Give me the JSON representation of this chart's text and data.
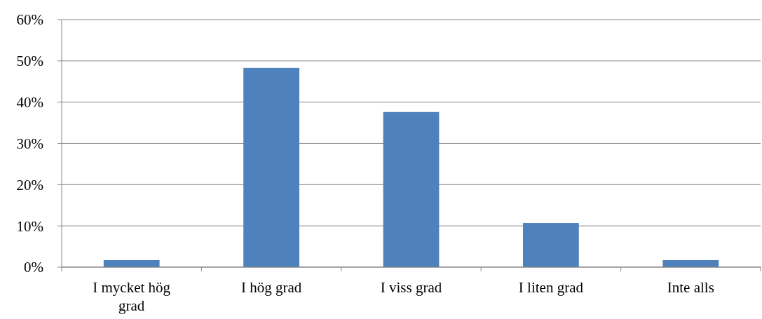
{
  "chart_data": {
    "type": "bar",
    "categories": [
      "I mycket hög grad",
      "I hög grad",
      "I viss grad",
      "I liten grad",
      "Inte alls"
    ],
    "values": [
      1.7,
      48.3,
      37.6,
      10.7,
      1.7
    ],
    "color": "#4f81bd",
    "ylim": [
      0,
      60
    ],
    "yticks": [
      {
        "value": 0,
        "label": "0%"
      },
      {
        "value": 10,
        "label": "10%"
      },
      {
        "value": 20,
        "label": "20%"
      },
      {
        "value": 30,
        "label": "30%"
      },
      {
        "value": 40,
        "label": "40%"
      },
      {
        "value": 50,
        "label": "50%"
      },
      {
        "value": 60,
        "label": "60%"
      }
    ],
    "grid": "y"
  }
}
